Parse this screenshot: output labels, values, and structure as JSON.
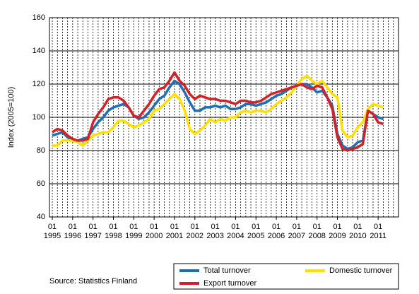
{
  "chart_data": {
    "type": "line",
    "y_label": "Index (2005=100)",
    "source": "Source: Statistics Finland",
    "xlim": [
      1994.86,
      2012.0
    ],
    "ylim": [
      40,
      160
    ],
    "yticks": [
      40,
      60,
      80,
      100,
      120,
      140,
      160
    ],
    "xticks": [
      {
        "value": 1995,
        "label": "01\n1995"
      },
      {
        "value": 1996,
        "label": "01\n1996"
      },
      {
        "value": 1997,
        "label": "01\n1997"
      },
      {
        "value": 1998,
        "label": "01\n1998"
      },
      {
        "value": 1999,
        "label": "01\n1999"
      },
      {
        "value": 2000,
        "label": "01\n2000"
      },
      {
        "value": 2001,
        "label": "01\n2001"
      },
      {
        "value": 2002,
        "label": "01\n2002"
      },
      {
        "value": 2003,
        "label": "01\n2003"
      },
      {
        "value": 2004,
        "label": "01\n2004"
      },
      {
        "value": 2005,
        "label": "01\n2005"
      },
      {
        "value": 2006,
        "label": "01\n2006"
      },
      {
        "value": 2007,
        "label": "01\n2007"
      },
      {
        "value": 2008,
        "label": "01\n2008"
      },
      {
        "value": 2009,
        "label": "01\n2009"
      },
      {
        "value": 2010,
        "label": "01\n2010"
      },
      {
        "value": 2011,
        "label": "01\n2011"
      }
    ],
    "grid": true,
    "x": [
      1995,
      1995.25,
      1995.5,
      1995.75,
      1996,
      1996.25,
      1996.5,
      1996.75,
      1997,
      1997.25,
      1997.5,
      1997.75,
      1998,
      1998.25,
      1998.5,
      1998.75,
      1999,
      1999.25,
      1999.5,
      1999.75,
      2000,
      2000.25,
      2000.5,
      2000.75,
      2001,
      2001.25,
      2001.5,
      2001.75,
      2002,
      2002.25,
      2002.5,
      2002.75,
      2003,
      2003.25,
      2003.5,
      2003.75,
      2004,
      2004.25,
      2004.5,
      2004.75,
      2005,
      2005.25,
      2005.5,
      2005.75,
      2006,
      2006.25,
      2006.5,
      2006.75,
      2007,
      2007.25,
      2007.5,
      2007.75,
      2008,
      2008.25,
      2008.5,
      2008.75,
      2009,
      2009.25,
      2009.5,
      2009.75,
      2010,
      2010.25,
      2010.5,
      2010.75,
      2011,
      2011.25
    ],
    "series": [
      {
        "name": "Total turnover",
        "color": "#1f6fb4",
        "values": [
          89,
          90,
          91,
          88,
          86,
          86,
          87,
          88,
          93,
          97,
          100,
          104,
          106,
          107,
          108,
          106,
          101,
          99,
          100,
          103,
          107,
          111,
          113,
          118,
          122,
          120,
          115,
          109,
          104,
          104,
          106,
          106,
          107,
          106,
          107,
          105,
          105,
          106,
          108,
          108,
          107,
          108,
          109,
          111,
          113,
          114,
          116,
          118,
          119,
          120,
          120,
          118,
          115,
          116,
          112,
          107,
          90,
          83,
          81,
          82,
          85,
          86,
          104,
          102,
          100,
          99
        ]
      },
      {
        "name": "Domestic turnover",
        "color": "#ffe000",
        "values": [
          83,
          83,
          86,
          86,
          86,
          85,
          83,
          86,
          89,
          90,
          91,
          91,
          94,
          98,
          98,
          96,
          94,
          95,
          97,
          99,
          104,
          105,
          108,
          111,
          114,
          111,
          104,
          93,
          90,
          92,
          95,
          99,
          97,
          99,
          98,
          100,
          100,
          103,
          104,
          103,
          104,
          104,
          103,
          105,
          108,
          110,
          112,
          115,
          119,
          123,
          125,
          122,
          120,
          122,
          118,
          114,
          112,
          92,
          88,
          89,
          94,
          97,
          105,
          108,
          107,
          106
        ]
      },
      {
        "name": "Export turnover",
        "color": "#d42027",
        "values": [
          91,
          93,
          92,
          89,
          87,
          86,
          86,
          87,
          97,
          102,
          106,
          111,
          112,
          112,
          110,
          106,
          101,
          100,
          104,
          108,
          113,
          117,
          118,
          122,
          127,
          122,
          119,
          114,
          111,
          113,
          112,
          111,
          111,
          110,
          110,
          109,
          108,
          110,
          110,
          109,
          109,
          110,
          112,
          114,
          115,
          116,
          117,
          118,
          119,
          120,
          118,
          117,
          119,
          118,
          112,
          105,
          88,
          81,
          80,
          81,
          82,
          84,
          104,
          102,
          97,
          96
        ]
      }
    ]
  }
}
